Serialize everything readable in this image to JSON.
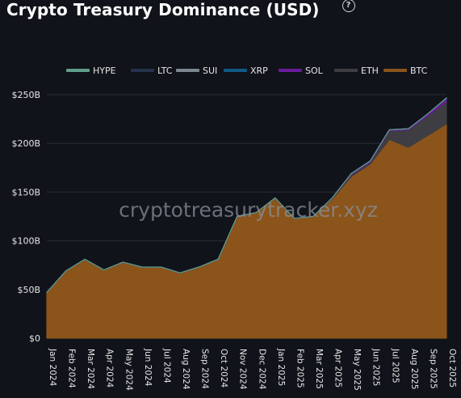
{
  "header": {
    "title": "Crypto Treasury Dominance (USD)",
    "help_icon": "question-circle-icon",
    "help_glyph": "?"
  },
  "colors": {
    "background": "#11131a",
    "grid": "#2a2d35",
    "axis_text": "#e6e6e6",
    "watermark": "#8a8f98"
  },
  "watermark": "cryptotreasurytracker.xyz",
  "chart_data": {
    "type": "area",
    "stacked": true,
    "title": "Crypto Treasury Dominance (USD)",
    "x": [
      "Jan 2024",
      "Feb 2024",
      "Mar 2024",
      "Apr 2024",
      "May 2024",
      "Jun 2024",
      "Jul 2024",
      "Aug 2024",
      "Sep 2024",
      "Oct 2024",
      "Nov 2024",
      "Dec 2024",
      "Jan 2025",
      "Feb 2025",
      "Mar 2025",
      "Apr 2025",
      "May 2025",
      "Jun 2025",
      "Jul 2025",
      "Aug 2025",
      "Sep 2025",
      "Oct 2025"
    ],
    "ylim": [
      0,
      250
    ],
    "yticks": [
      0,
      50,
      100,
      150,
      200,
      250
    ],
    "ytick_labels": [
      "$0",
      "$50B",
      "$100B",
      "$150B",
      "$200B",
      "$250B"
    ],
    "grid": true,
    "legend_position": "top",
    "series": [
      {
        "name": "BTC",
        "color": "#8a541b",
        "values": [
          47,
          69,
          81,
          70,
          78,
          73,
          73,
          67,
          73,
          81,
          125,
          129,
          144,
          123,
          125,
          143,
          166,
          179,
          204,
          196,
          208,
          220
        ]
      },
      {
        "name": "ETH",
        "color": "#3d3d42",
        "values": [
          0,
          0,
          0,
          0,
          0,
          0,
          0,
          0,
          0,
          0,
          0,
          0,
          0,
          0,
          0,
          1,
          2,
          2,
          9,
          18,
          20,
          23
        ]
      },
      {
        "name": "SOL",
        "color": "#6a1b9a",
        "values": [
          0,
          0,
          0,
          0,
          0,
          0,
          0,
          0,
          0,
          0,
          0,
          0,
          0,
          0,
          0,
          0,
          1,
          1,
          1,
          1,
          2,
          3
        ]
      },
      {
        "name": "XRP",
        "color": "#0f5a84",
        "values": [
          0,
          0,
          0,
          0,
          0,
          0,
          0,
          0,
          0,
          0,
          0,
          0,
          0,
          0,
          0,
          0,
          0,
          0,
          0,
          0,
          0,
          0.3
        ]
      },
      {
        "name": "SUI",
        "color": "#7d8790",
        "values": [
          0,
          0,
          0,
          0,
          0,
          0,
          0,
          0,
          0,
          0,
          0,
          0,
          0,
          0,
          0,
          0,
          0,
          0,
          0,
          0,
          0,
          0.2
        ]
      },
      {
        "name": "LTC",
        "color": "#25324a",
        "values": [
          0,
          0,
          0,
          0,
          0,
          0,
          0,
          0,
          0,
          0,
          0,
          0,
          0,
          0,
          0,
          0,
          0,
          0,
          0,
          0,
          0,
          0.1
        ]
      },
      {
        "name": "HYPE",
        "color": "#5f9e8c",
        "values": [
          0,
          0,
          0,
          0,
          0,
          0,
          0,
          0,
          0,
          0,
          0,
          0,
          0,
          0,
          0,
          0,
          0,
          0,
          0,
          0,
          0,
          0.1
        ]
      }
    ],
    "legend_order": [
      "HYPE",
      "LTC",
      "SUI",
      "XRP",
      "SOL",
      "ETH",
      "BTC"
    ]
  }
}
